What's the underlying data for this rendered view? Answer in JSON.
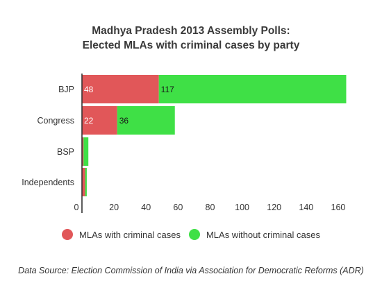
{
  "chart_data": {
    "type": "bar",
    "orientation": "horizontal",
    "stacked": true,
    "title": "Madhya Pradesh 2013 Assembly Polls:",
    "subtitle": "Elected MLAs with criminal cases by party",
    "categories": [
      "BJP",
      "Congress",
      "BSP",
      "Independents"
    ],
    "series": [
      {
        "name": "MLAs with criminal cases",
        "values": [
          48,
          22,
          1,
          2
        ],
        "color": "#e15759",
        "labels": [
          "48",
          "22",
          "",
          ""
        ]
      },
      {
        "name": "MLAs without criminal cases",
        "values": [
          117,
          36,
          3,
          1
        ],
        "color": "#3fe046",
        "labels": [
          "117",
          "36",
          "",
          ""
        ]
      }
    ],
    "xlim": [
      0,
      170
    ],
    "xticks": [
      0,
      20,
      40,
      60,
      80,
      100,
      120,
      140,
      160
    ],
    "grid": false,
    "legend_position": "bottom"
  },
  "source": "Data Source: Election Commission of India via Association for Democratic Reforms (ADR)"
}
